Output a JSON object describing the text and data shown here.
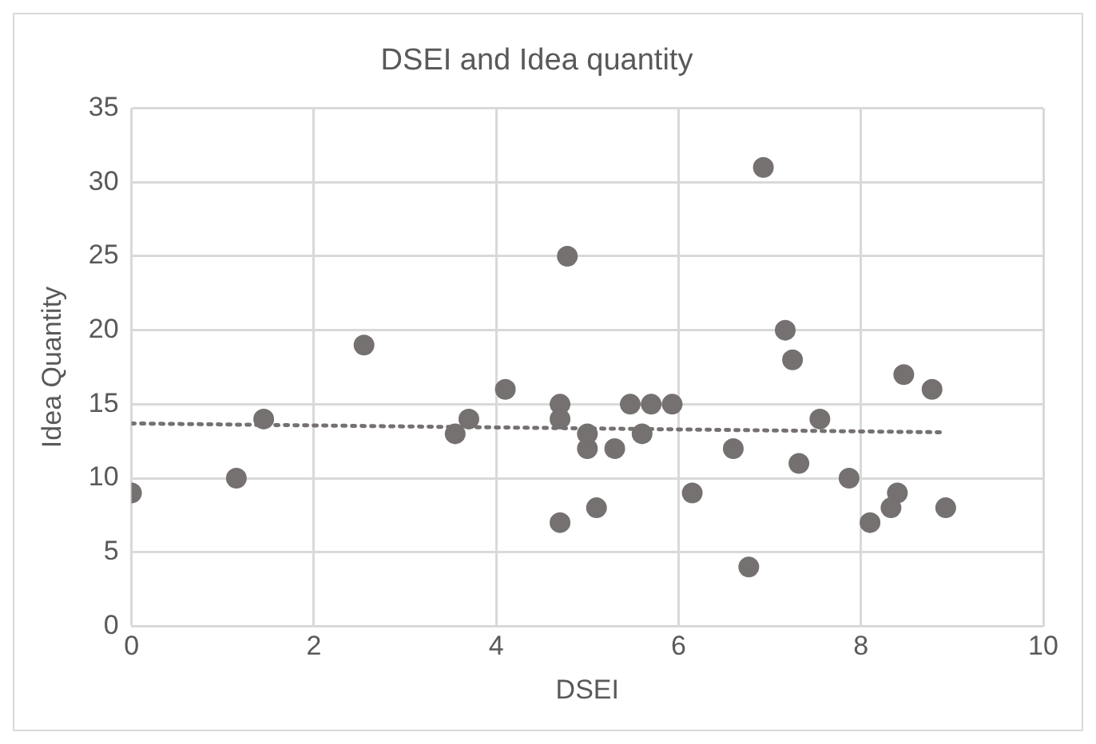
{
  "chart_data": {
    "type": "scatter",
    "title": "DSEI and Idea quantity",
    "xlabel": "DSEI",
    "ylabel": "Idea Quantity",
    "xlim": [
      0,
      10
    ],
    "xticks": [
      0,
      2,
      4,
      6,
      8,
      10
    ],
    "ylim": [
      0,
      35
    ],
    "yticks": [
      0,
      5,
      10,
      15,
      20,
      25,
      30,
      35
    ],
    "grid": true,
    "legend": false,
    "marker": "circle",
    "series": [
      {
        "color": "#767171",
        "x": [
          0,
          1.15,
          1.45,
          2.55,
          3.55,
          3.7,
          4.1,
          4.7,
          4.7,
          4.7,
          4.78,
          5.0,
          5.0,
          5.1,
          5.3,
          5.47,
          5.6,
          5.7,
          5.93,
          6.15,
          6.6,
          6.77,
          6.93,
          7.17,
          7.25,
          7.32,
          7.55,
          7.87,
          8.1,
          8.33,
          8.4,
          8.47,
          8.78,
          8.93
        ],
        "values": [
          9,
          10,
          14,
          19,
          13,
          14,
          16,
          15,
          14,
          7,
          25,
          13,
          12,
          8,
          12,
          15,
          13,
          15,
          15,
          9,
          12,
          4,
          31,
          20,
          18,
          11,
          14,
          10,
          7,
          8,
          9,
          17,
          16,
          8
        ]
      },
      {
        "type": "line",
        "color": "#767171",
        "line_style": "dotted",
        "marker": "none",
        "x": [
          0,
          8.93
        ],
        "values": [
          13.7,
          13.1
        ]
      }
    ]
  }
}
